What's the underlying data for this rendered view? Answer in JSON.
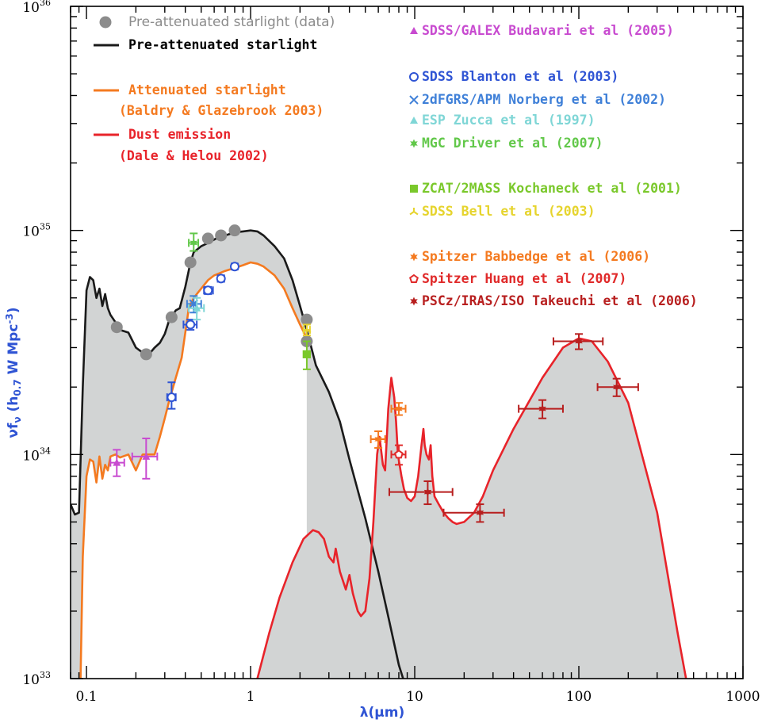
{
  "chart_data": {
    "type": "line",
    "title": "",
    "xlabel": "λ(μm)",
    "ylabel": "νf_ν (h_0.7 W Mpc^-3)",
    "x_scale": "log",
    "y_scale": "log",
    "xlim": [
      0.08,
      1000
    ],
    "ylim": [
      1e+33,
      1e+36
    ],
    "x_ticks": [
      {
        "value": 0.1,
        "label": "0.1"
      },
      {
        "value": 1,
        "label": "1"
      },
      {
        "value": 10,
        "label": "10"
      },
      {
        "value": 100,
        "label": "100"
      },
      {
        "value": 1000,
        "label": "1000"
      }
    ],
    "y_ticks": [
      {
        "value": 1e+33,
        "base": "10",
        "exp": "33"
      },
      {
        "value": 1e+34,
        "base": "10",
        "exp": "34"
      },
      {
        "value": 1e+35,
        "base": "10",
        "exp": "35"
      },
      {
        "value": 1e+36,
        "base": "10",
        "exp": "36"
      }
    ],
    "grid": false,
    "colors": {
      "fill": "#d2d4d4",
      "pre": "#1a1a1a",
      "att": "#f47a20",
      "dust": "#e8232a",
      "pre_data": "#8c8c8c",
      "budavari": "#c84bd0",
      "blanton": "#2f54d4",
      "norberg": "#3f80d8",
      "zucca": "#7fd6d6",
      "driver": "#62c84a",
      "kochanek": "#7ac82b",
      "bell": "#e6d42e",
      "babbedge": "#f47a20",
      "huang": "#e02a2a",
      "takeuchi": "#b81f1f"
    },
    "series": [
      {
        "name": "Pre-attenuated starlight",
        "style": "line",
        "color_key": "pre",
        "x": [
          0.08,
          0.085,
          0.09,
          0.095,
          0.1,
          0.105,
          0.11,
          0.115,
          0.12,
          0.125,
          0.13,
          0.135,
          0.14,
          0.15,
          0.16,
          0.18,
          0.2,
          0.22,
          0.24,
          0.26,
          0.28,
          0.3,
          0.32,
          0.35,
          0.37,
          0.4,
          0.43,
          0.45,
          0.5,
          0.55,
          0.6,
          0.65,
          0.7,
          0.8,
          0.9,
          1.0,
          1.1,
          1.2,
          1.4,
          1.6,
          1.8,
          2.0,
          2.2,
          2.5,
          3.0,
          3.5,
          4.0,
          5.0,
          6.0,
          7.0,
          8.0,
          8.5
        ],
        "y": [
          6e+33,
          5.4e+33,
          5.5e+33,
          2e+34,
          5.4e+34,
          6.2e+34,
          6e+34,
          5e+34,
          5.5e+34,
          4.6e+34,
          5.2e+34,
          4.5e+34,
          4.2e+34,
          3.9e+34,
          3.6e+34,
          3.5e+34,
          3e+34,
          2.85e+34,
          2.8e+34,
          3e+34,
          3.15e+34,
          3.45e+34,
          4e+34,
          4.4e+34,
          4.5e+34,
          5.6e+34,
          7.2e+34,
          8e+34,
          8.5e+34,
          8.8e+34,
          9.1e+34,
          9.4e+34,
          9.5e+34,
          9.8e+34,
          9.9e+34,
          1e+35,
          9.9e+34,
          9.5e+34,
          8.5e+34,
          7.5e+34,
          6e+34,
          4.6e+34,
          3.6e+34,
          2.5e+34,
          1.9e+34,
          1.4e+34,
          9.5e+33,
          5.2e+33,
          3e+33,
          1.8e+33,
          1.15e+33,
          1e+33
        ]
      },
      {
        "name": "Attenuated starlight",
        "style": "line",
        "color_key": "att",
        "x": [
          0.092,
          0.095,
          0.1,
          0.105,
          0.11,
          0.115,
          0.12,
          0.125,
          0.13,
          0.135,
          0.14,
          0.15,
          0.16,
          0.18,
          0.2,
          0.22,
          0.24,
          0.26,
          0.28,
          0.3,
          0.32,
          0.35,
          0.38,
          0.4,
          0.42,
          0.45,
          0.5,
          0.55,
          0.6,
          0.7,
          0.8,
          0.9,
          1.0,
          1.1,
          1.2,
          1.4,
          1.6,
          1.8,
          2.0,
          2.2
        ],
        "y": [
          1e+33,
          3.5e+33,
          8e+33,
          9.5e+33,
          9.3e+33,
          7.5e+33,
          9.8e+33,
          7.8e+33,
          9e+33,
          8.5e+33,
          9.8e+33,
          1e+34,
          9.7e+33,
          1e+34,
          8.5e+33,
          1e+34,
          1e+34,
          1e+34,
          1.2e+34,
          1.45e+34,
          1.75e+34,
          2.2e+34,
          2.7e+34,
          3.5e+34,
          4.5e+34,
          5e+34,
          5.5e+34,
          6e+34,
          6.3e+34,
          6.6e+34,
          6.8e+34,
          7e+34,
          7.2e+34,
          7.1e+34,
          6.9e+34,
          6.3e+34,
          5.5e+34,
          4.5e+34,
          3.8e+34,
          3.3e+34
        ]
      },
      {
        "name": "Dust emission",
        "style": "line",
        "color_key": "dust",
        "x": [
          1.1,
          1.3,
          1.5,
          1.8,
          2.1,
          2.4,
          2.6,
          2.8,
          3.0,
          3.2,
          3.3,
          3.5,
          3.8,
          4.0,
          4.2,
          4.5,
          4.7,
          5.0,
          5.3,
          5.6,
          5.9,
          6.1,
          6.4,
          6.6,
          6.9,
          7.2,
          7.5,
          7.7,
          7.9,
          8.3,
          8.6,
          9.0,
          9.5,
          10.0,
          10.5,
          11.0,
          11.3,
          11.5,
          11.8,
          12.2,
          12.5,
          12.8,
          13.2,
          14.0,
          15.0,
          16.0,
          17.0,
          18.0,
          20.0,
          23.0,
          26.0,
          30.0,
          40.0,
          60.0,
          80.0,
          100.0,
          120.0,
          150.0,
          200.0,
          300.0,
          400.0,
          450.0
        ],
        "y": [
          1e+33,
          1.6e+33,
          2.3e+33,
          3.3e+33,
          4.2e+33,
          4.6e+33,
          4.5e+33,
          4.2e+33,
          3.5e+33,
          3.3e+33,
          3.8e+33,
          3e+33,
          2.5e+33,
          2.9e+33,
          2.4e+33,
          2e+33,
          1.9e+33,
          2e+33,
          2.8e+33,
          5e+33,
          1e+34,
          1.2e+34,
          9e+33,
          8.5e+33,
          1.6e+34,
          2.2e+34,
          1.8e+34,
          1.4e+34,
          1e+34,
          8e+33,
          7e+33,
          6.4e+33,
          6.2e+33,
          6.5e+33,
          8e+33,
          1.1e+34,
          1.3e+34,
          1.1e+34,
          1e+34,
          9.5e+33,
          1.1e+34,
          8e+33,
          6.5e+33,
          6e+33,
          5.5e+33,
          5.2e+33,
          5e+33,
          4.9e+33,
          5e+33,
          5.5e+33,
          6.5e+33,
          8.5e+33,
          1.3e+34,
          2.2e+34,
          3e+34,
          3.3e+34,
          3.2e+34,
          2.6e+34,
          1.7e+34,
          5.5e+33,
          1.6e+33,
          1e+33
        ]
      }
    ],
    "data_points": [
      {
        "name": "Pre-attenuated starlight (data)",
        "color_key": "pre_data",
        "marker": "dot",
        "points": [
          {
            "x": 0.153,
            "y": 3.7e+34
          },
          {
            "x": 0.231,
            "y": 2.8e+34
          },
          {
            "x": 0.33,
            "y": 4.1e+34
          },
          {
            "x": 0.43,
            "y": 7.2e+34
          },
          {
            "x": 0.55,
            "y": 9.2e+34
          },
          {
            "x": 0.66,
            "y": 9.5e+34
          },
          {
            "x": 0.8,
            "y": 1e+35
          },
          {
            "x": 2.2,
            "y": 4e+34
          },
          {
            "x": 2.2,
            "y": 3.2e+34
          }
        ]
      },
      {
        "name": "SDSS/GALEX Budavari et al (2005)",
        "color_key": "budavari",
        "marker": "triangle",
        "points": [
          {
            "x": 0.153,
            "y": 9.2e+33,
            "xerr": [
              0.14,
              0.17
            ],
            "yerr": [
              8e+33,
              1.05e+34
            ]
          },
          {
            "x": 0.231,
            "y": 9.8e+33,
            "xerr": [
              0.19,
              0.27
            ],
            "yerr": [
              7.8e+33,
              1.18e+34
            ]
          }
        ]
      },
      {
        "name": "SDSS Blanton et al (2003)",
        "color_key": "blanton",
        "marker": "circle",
        "points": [
          {
            "x": 0.33,
            "y": 1.8e+34,
            "xerr": [
              0.31,
              0.35
            ],
            "yerr": [
              1.6e+34,
              2.1e+34
            ]
          },
          {
            "x": 0.43,
            "y": 3.8e+34,
            "xerr": [
              0.39,
              0.47
            ],
            "yerr": [
              3.6e+34,
              4e+34
            ]
          },
          {
            "x": 0.55,
            "y": 5.4e+34,
            "xerr": [
              0.52,
              0.59
            ],
            "yerr": [
              5.2e+34,
              5.6e+34
            ]
          },
          {
            "x": 0.66,
            "y": 6.1e+34,
            "xerr": [
              0.63,
              0.69
            ],
            "yerr": [
              5.9e+34,
              6.3e+34
            ]
          },
          {
            "x": 0.8,
            "y": 6.9e+34,
            "xerr": [
              0.77,
              0.83
            ],
            "yerr": [
              6.7e+34,
              7.1e+34
            ]
          }
        ]
      },
      {
        "name": "2dFGRS/APM Norberg et al (2002)",
        "color_key": "norberg",
        "marker": "cross",
        "points": [
          {
            "x": 0.45,
            "y": 4.7e+34,
            "xerr": [
              0.41,
              0.5
            ],
            "yerr": [
              4.3e+34,
              5.1e+34
            ]
          }
        ]
      },
      {
        "name": "ESP Zucca et al (1997)",
        "color_key": "zucca",
        "marker": "triangle",
        "points": [
          {
            "x": 0.47,
            "y": 4.5e+34,
            "xerr": [
              0.42,
              0.52
            ],
            "yerr": [
              4e+34,
              5e+34
            ]
          }
        ]
      },
      {
        "name": "MGC Driver et al (2007)",
        "color_key": "driver",
        "marker": "star",
        "points": [
          {
            "x": 0.45,
            "y": 8.8e+34,
            "xerr": [
              0.42,
              0.48
            ],
            "yerr": [
              8.1e+34,
              9.7e+34
            ]
          }
        ]
      },
      {
        "name": "ZCAT/2MASS Kochaneck et al (2001)",
        "color_key": "kochanek",
        "marker": "square",
        "points": [
          {
            "x": 2.2,
            "y": 2.8e+34,
            "xerr": [
              2.1,
              2.3
            ],
            "yerr": [
              2.4e+34,
              3.2e+34
            ]
          }
        ]
      },
      {
        "name": "SDSS Bell et al (2003)",
        "color_key": "bell",
        "marker": "tri-line",
        "points": [
          {
            "x": 2.2,
            "y": 3.6e+34,
            "xerr": [
              2.1,
              2.3
            ],
            "yerr": [
              3.4e+34,
              3.8e+34
            ]
          }
        ]
      },
      {
        "name": "Spitzer Babbedge et al (2006)",
        "color_key": "babbedge",
        "marker": "star",
        "points": [
          {
            "x": 6.0,
            "y": 1.17e+34,
            "xerr": [
              5.4,
              6.6
            ],
            "yerr": [
              1.07e+34,
              1.27e+34
            ]
          },
          {
            "x": 8.0,
            "y": 1.6e+34,
            "xerr": [
              7.2,
              8.8
            ],
            "yerr": [
              1.5e+34,
              1.7e+34
            ]
          }
        ]
      },
      {
        "name": "Spitzer Huang et al (2007)",
        "color_key": "huang",
        "marker": "pentagon",
        "points": [
          {
            "x": 8.0,
            "y": 1e+34,
            "xerr": [
              7.2,
              8.8
            ],
            "yerr": [
              9e+33,
              1.1e+34
            ]
          }
        ]
      },
      {
        "name": "PSCz/IRAS/ISO Takeuchi et al (2006)",
        "color_key": "takeuchi",
        "marker": "star",
        "points": [
          {
            "x": 12.0,
            "y": 6.8e+33,
            "xerr": [
              7.0,
              17.0
            ],
            "yerr": [
              6e+33,
              7.6e+33
            ]
          },
          {
            "x": 25.0,
            "y": 5.5e+33,
            "xerr": [
              15.0,
              35.0
            ],
            "yerr": [
              5e+33,
              6e+33
            ]
          },
          {
            "x": 60.0,
            "y": 1.6e+34,
            "xerr": [
              43.0,
              80.0
            ],
            "yerr": [
              1.45e+34,
              1.75e+34
            ]
          },
          {
            "x": 100.0,
            "y": 3.2e+34,
            "xerr": [
              70.0,
              140.0
            ],
            "yerr": [
              2.95e+34,
              3.45e+34
            ]
          },
          {
            "x": 170.0,
            "y": 2e+34,
            "xerr": [
              130.0,
              230.0
            ],
            "yerr": [
              1.82e+34,
              2.18e+34
            ]
          }
        ]
      }
    ],
    "legend_left": [
      {
        "label": "Pre-attenuated starlight (data)",
        "color_key": "pre_data",
        "symbol": "dot",
        "font": "sans"
      },
      {
        "label": "Pre-attenuated starlight",
        "color_key": "pre",
        "symbol": "line",
        "font": "mono"
      },
      {
        "label": "Attenuated starlight",
        "color_key": "att",
        "symbol": "line",
        "font": "mono"
      },
      {
        "label": "(Baldry & Glazebrook 2003)",
        "color_key": "att",
        "symbol": "none",
        "font": "mono"
      },
      {
        "label": "Dust emission",
        "color_key": "dust",
        "symbol": "line",
        "font": "mono"
      },
      {
        "label": "(Dale & Helou 2002)",
        "color_key": "dust",
        "symbol": "none",
        "font": "mono"
      }
    ],
    "legend_right": [
      {
        "label": "SDSS/GALEX Budavari et al (2005)",
        "color_key": "budavari",
        "symbol": "triangle"
      },
      {
        "label": "SDSS Blanton et al (2003)",
        "color_key": "blanton",
        "symbol": "circle"
      },
      {
        "label": "2dFGRS/APM Norberg et al (2002)",
        "color_key": "norberg",
        "symbol": "cross"
      },
      {
        "label": "ESP Zucca et al (1997)",
        "color_key": "zucca",
        "symbol": "triangle"
      },
      {
        "label": "MGC Driver et al (2007)",
        "color_key": "driver",
        "symbol": "star"
      },
      {
        "label": "ZCAT/2MASS Kochaneck et al (2001)",
        "color_key": "kochanek",
        "symbol": "square"
      },
      {
        "label": "SDSS Bell et al (2003)",
        "color_key": "bell",
        "symbol": "tri-line"
      },
      {
        "label": "Spitzer Babbedge et al (2006)",
        "color_key": "babbedge",
        "symbol": "star"
      },
      {
        "label": "Spitzer Huang et al (2007)",
        "color_key": "huang",
        "symbol": "pentagon"
      },
      {
        "label": "PSCz/IRAS/ISO Takeuchi et al (2006)",
        "color_key": "takeuchi",
        "symbol": "star"
      }
    ]
  }
}
